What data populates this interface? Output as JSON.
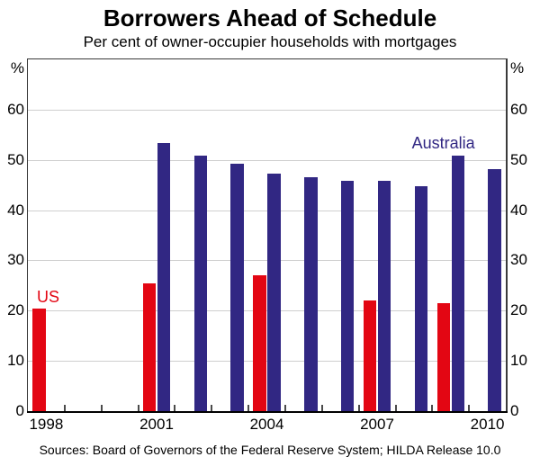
{
  "header": {
    "title": "Borrowers Ahead of Schedule",
    "subtitle": "Per cent of owner-occupier households with mortgages"
  },
  "footer": {
    "source_note": "Sources: Board of Governors of the Federal Reserve System; HILDA Release 10.0"
  },
  "axes": {
    "unit_symbol": "%",
    "y_tick_labels": [
      "0",
      "10",
      "20",
      "30",
      "40",
      "50",
      "60"
    ],
    "x_tick_labels": [
      "1998",
      "2001",
      "2004",
      "2007",
      "2010"
    ]
  },
  "colors": {
    "us_red": "#e30613",
    "australia_blue": "#312783",
    "gridline": "#cfcfcf",
    "frame": "#3a3a3a",
    "axis": "#000000",
    "text": "#000000"
  },
  "chart_data": {
    "type": "bar",
    "title": "Borrowers Ahead of Schedule",
    "subtitle": "Per cent of owner-occupier households with mortgages",
    "xlabel": "",
    "ylabel": "%",
    "ylim": [
      0,
      70
    ],
    "y_ticks": [
      0,
      10,
      20,
      30,
      40,
      50,
      60
    ],
    "x_year_range": [
      1998,
      2010
    ],
    "x_labeled_years": [
      1998,
      2001,
      2004,
      2007,
      2010
    ],
    "grid": "horizontal",
    "legend_position": "in-plot text labels",
    "series": [
      {
        "name": "US",
        "color": "#e30613",
        "label_anchor": {
          "year": 1998.05,
          "value": 22.7
        },
        "points": [
          {
            "year": 1998,
            "value": 20.4
          },
          {
            "year": 2001,
            "value": 25.4
          },
          {
            "year": 2004,
            "value": 27.0
          },
          {
            "year": 2007,
            "value": 22.0
          },
          {
            "year": 2009,
            "value": 21.5
          }
        ]
      },
      {
        "name": "Australia",
        "color": "#312783",
        "label_anchor": {
          "year": 2008.8,
          "value": 53.3
        },
        "points": [
          {
            "year": 2001,
            "value": 53.3
          },
          {
            "year": 2002,
            "value": 50.9
          },
          {
            "year": 2003,
            "value": 49.3
          },
          {
            "year": 2004,
            "value": 47.3
          },
          {
            "year": 2005,
            "value": 46.5
          },
          {
            "year": 2006,
            "value": 45.9
          },
          {
            "year": 2007,
            "value": 45.9
          },
          {
            "year": 2008,
            "value": 44.7
          },
          {
            "year": 2009,
            "value": 50.9
          },
          {
            "year": 2010,
            "value": 48.1
          }
        ]
      }
    ]
  }
}
